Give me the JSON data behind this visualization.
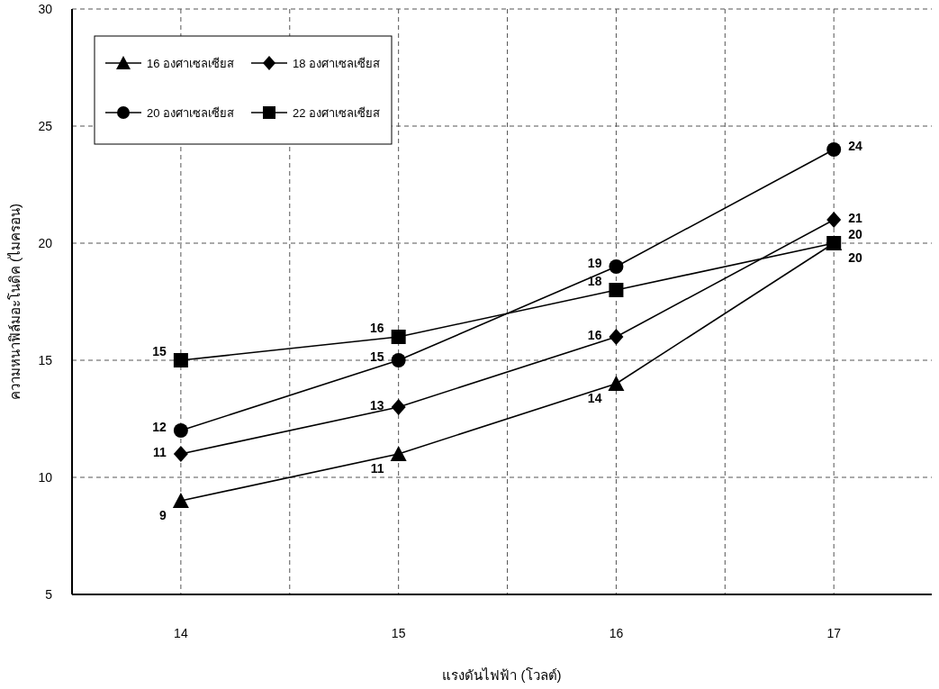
{
  "chart_data": {
    "type": "line",
    "xlabel": "แรงดันไฟฟ้า (โวลต์)",
    "ylabel": "ความหนาฟิล์มอะโนดิค (ไมครอน)",
    "x": [
      14,
      15,
      16,
      17
    ],
    "series": [
      {
        "name": "16 องศาเซลเซียส",
        "color": "#000000",
        "marker": "triangle",
        "values": [
          9,
          11,
          14,
          20
        ]
      },
      {
        "name": "18 องศาเซลเซียส",
        "color": "#000000",
        "marker": "diamond",
        "values": [
          11,
          13,
          16,
          21
        ]
      },
      {
        "name": "20 องศาเซลเซียส",
        "color": "#000000",
        "marker": "circle",
        "values": [
          12,
          15,
          19,
          24
        ]
      },
      {
        "name": "22 องศาเซลเซียส",
        "color": "#000000",
        "marker": "square",
        "values": [
          15,
          16,
          18,
          20
        ]
      }
    ],
    "xlim": [
      13.5,
      17.45
    ],
    "xticks": [
      14,
      {
        "value": 14.5,
        "label": null
      },
      15,
      {
        "value": 15.5,
        "label": null
      },
      16,
      {
        "value": 16.5,
        "label": null
      },
      17
    ],
    "ylim": [
      5,
      30
    ],
    "yticks": [
      5,
      10,
      15,
      20,
      25,
      30
    ],
    "grid": true,
    "legend": "top left",
    "data_labels": true,
    "line_style": "solid"
  }
}
